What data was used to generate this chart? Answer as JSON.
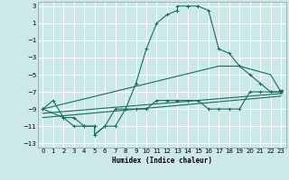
{
  "xlabel": "Humidex (Indice chaleur)",
  "bg_color": "#cce8e8",
  "line_color": "#1a6b5a",
  "grid_color": "#b0d0d0",
  "xlim": [
    -0.5,
    23.5
  ],
  "ylim": [
    -13.5,
    3.5
  ],
  "yticks": [
    3,
    1,
    -1,
    -3,
    -5,
    -7,
    -9,
    -11,
    -13
  ],
  "xticks": [
    0,
    1,
    2,
    3,
    4,
    5,
    6,
    7,
    8,
    9,
    10,
    11,
    12,
    13,
    14,
    15,
    16,
    17,
    18,
    19,
    20,
    21,
    22,
    23
  ],
  "series": [
    {
      "x": [
        0,
        1,
        2,
        3,
        4,
        5,
        5,
        6,
        7,
        8,
        9,
        10,
        11,
        12,
        13,
        13,
        14,
        14,
        15,
        15,
        16,
        17,
        18,
        19,
        20,
        21,
        22,
        23
      ],
      "y": [
        -9,
        -8,
        -10,
        -11,
        -11,
        -11,
        -12,
        -11,
        -9,
        -9,
        -6,
        -2,
        1,
        2,
        2.5,
        3,
        3,
        3,
        3,
        3,
        2.5,
        -2,
        -2.5,
        -4,
        -5,
        -6,
        -7,
        -7
      ],
      "marker": "+"
    },
    {
      "x": [
        0,
        2,
        3,
        4,
        5,
        5,
        6,
        7,
        8,
        9,
        10,
        11,
        12,
        13,
        14,
        15,
        16,
        17,
        18,
        19,
        20,
        21,
        22,
        23
      ],
      "y": [
        -9,
        -10,
        -10,
        -11,
        -11,
        -12,
        -11,
        -11,
        -9,
        -9,
        -9,
        -8,
        -8,
        -8,
        -8,
        -8,
        -9,
        -9,
        -9,
        -9,
        -7,
        -7,
        -7,
        -7
      ],
      "marker": "+"
    },
    {
      "x": [
        0,
        17,
        19,
        22,
        23
      ],
      "y": [
        -9,
        -4,
        -4,
        -5,
        -7
      ],
      "marker": null
    },
    {
      "x": [
        0,
        23
      ],
      "y": [
        -9.5,
        -7.2
      ],
      "marker": null
    },
    {
      "x": [
        0,
        23
      ],
      "y": [
        -10,
        -7.5
      ],
      "marker": null
    }
  ]
}
